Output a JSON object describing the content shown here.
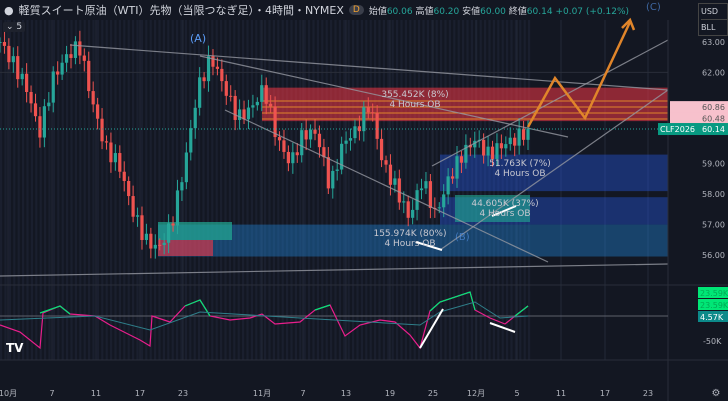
{
  "header": {
    "title": "軽質スイート原油（WTI）先物（当限つなぎ足）・4時間・NYMEX",
    "badge": "D",
    "open_label": "始値",
    "open": "60.06",
    "high_label": "高値",
    "high": "60.20",
    "low_label": "安値",
    "low": "60.00",
    "close_label": "終値",
    "close": "60.14",
    "change": "+0.07 (+0.12%)",
    "collapse": "5"
  },
  "currency": {
    "line1": "USD",
    "line2": "BLL"
  },
  "colors": {
    "bg": "#131722",
    "up": "#26a69a",
    "down": "#ef5350",
    "ob_bear": "#f23645",
    "ob_bull": "#2962ff",
    "projection": "#e0852a"
  },
  "chart_data": {
    "type": "candlestick",
    "symbol_badge": "CLF2026",
    "last_price": "60.14",
    "price_ticks": [
      "63.00",
      "62.00",
      "59.00",
      "58.00",
      "57.00",
      "56.00"
    ],
    "price_labels": [
      "60.86",
      "60.48"
    ],
    "ylim": [
      55.5,
      63.3
    ],
    "date_ticks": [
      "10月",
      "7",
      "11",
      "17",
      "23",
      "11月",
      "7",
      "13",
      "19",
      "25",
      "12月",
      "5",
      "11",
      "17",
      "23"
    ],
    "approx_close_path": [
      63,
      62.3,
      61.5,
      60,
      61.8,
      62.5,
      62.9,
      61,
      59.5,
      59,
      57.5,
      56.5,
      56.2,
      57,
      59,
      61.5,
      62.5,
      61.5,
      60.5,
      60.8,
      61.5,
      59.8,
      59,
      60,
      60,
      58.2,
      59.7,
      60.1,
      61,
      59,
      58.2,
      57.2,
      58.5,
      57.3,
      58.5,
      59.3,
      59.8,
      59.3,
      59.6,
      59.8,
      60.14
    ],
    "order_blocks": [
      {
        "type": "bearish",
        "volume": "355.452K (8%)",
        "label": "4 Hours OB",
        "top": 61.5,
        "bottom": 60.4
      },
      {
        "type": "bullish",
        "volume": "51.763K (7%)",
        "label": "4 Hours OB",
        "top": 59.3,
        "bottom": 58.1
      },
      {
        "type": "bullish",
        "volume": "44.605K (37%)",
        "label": "4 Hours OB",
        "top": 57.9,
        "bottom": 57.0
      },
      {
        "type": "bullish",
        "volume": "155.974K (80%)",
        "label": "4 Hours OB",
        "top": 57.0,
        "bottom": 55.95
      }
    ],
    "wave_labels": [
      "(A)",
      "(B)",
      "(C)"
    ],
    "indicator": {
      "ticks": [
        "-50K"
      ],
      "labels": [
        "23.59K",
        "23.59K",
        "4.57K"
      ]
    }
  }
}
